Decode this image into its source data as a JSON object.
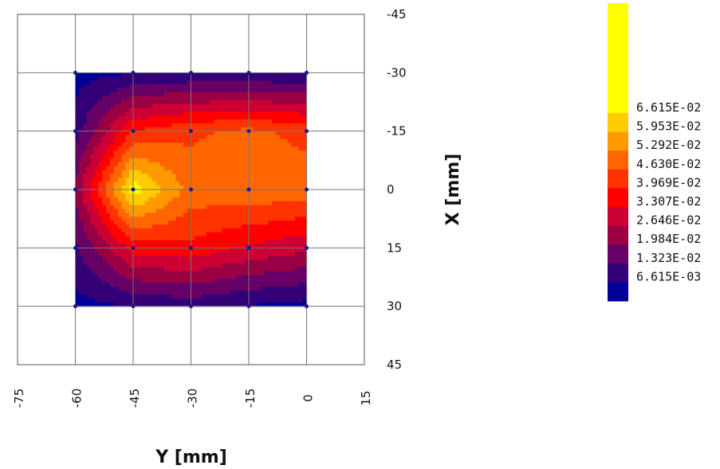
{
  "chart_data": {
    "type": "heatmap",
    "xlabel": "Y [mm]",
    "ylabel": "X [mm]",
    "x_ticks": [
      "-75",
      "-60",
      "-45",
      "-30",
      "-15",
      "0",
      "15"
    ],
    "y_ticks": [
      "-45",
      "-30",
      "-15",
      "0",
      "15",
      "30",
      "45"
    ],
    "xlim": [
      -75,
      15
    ],
    "ylim": [
      -45,
      45
    ],
    "grid": true,
    "data_extent": {
      "y_mm": [
        -60,
        0
      ],
      "x_mm": [
        -30,
        30
      ]
    },
    "grid_y_mm": [
      -60,
      -45,
      -30,
      -15,
      0
    ],
    "grid_x_mm": [
      -30,
      -15,
      0,
      15,
      30
    ],
    "values": [
      [
        0.004,
        0.006,
        0.007,
        0.007,
        0.006
      ],
      [
        0.01,
        0.04,
        0.045,
        0.048,
        0.044
      ],
      [
        0.022,
        0.07,
        0.05,
        0.052,
        0.05
      ],
      [
        0.012,
        0.036,
        0.038,
        0.032,
        0.028
      ],
      [
        0.004,
        0.007,
        0.009,
        0.006,
        0.004
      ]
    ],
    "legend": {
      "levels": [
        "6.615E-02",
        "5.953E-02",
        "5.292E-02",
        "4.630E-02",
        "3.969E-02",
        "3.307E-02",
        "2.646E-02",
        "1.984E-02",
        "1.323E-02",
        "6.615E-03"
      ],
      "thresholds": [
        0.06615,
        0.05953,
        0.05292,
        0.0463,
        0.03969,
        0.03307,
        0.02646,
        0.01984,
        0.01323,
        0.006615
      ],
      "colors": [
        "#ffff00",
        "#ffcc00",
        "#ff9900",
        "#ff6600",
        "#ff3300",
        "#ff0000",
        "#cc0033",
        "#990044",
        "#660066",
        "#330077",
        "#000099"
      ],
      "placement": "right"
    }
  }
}
